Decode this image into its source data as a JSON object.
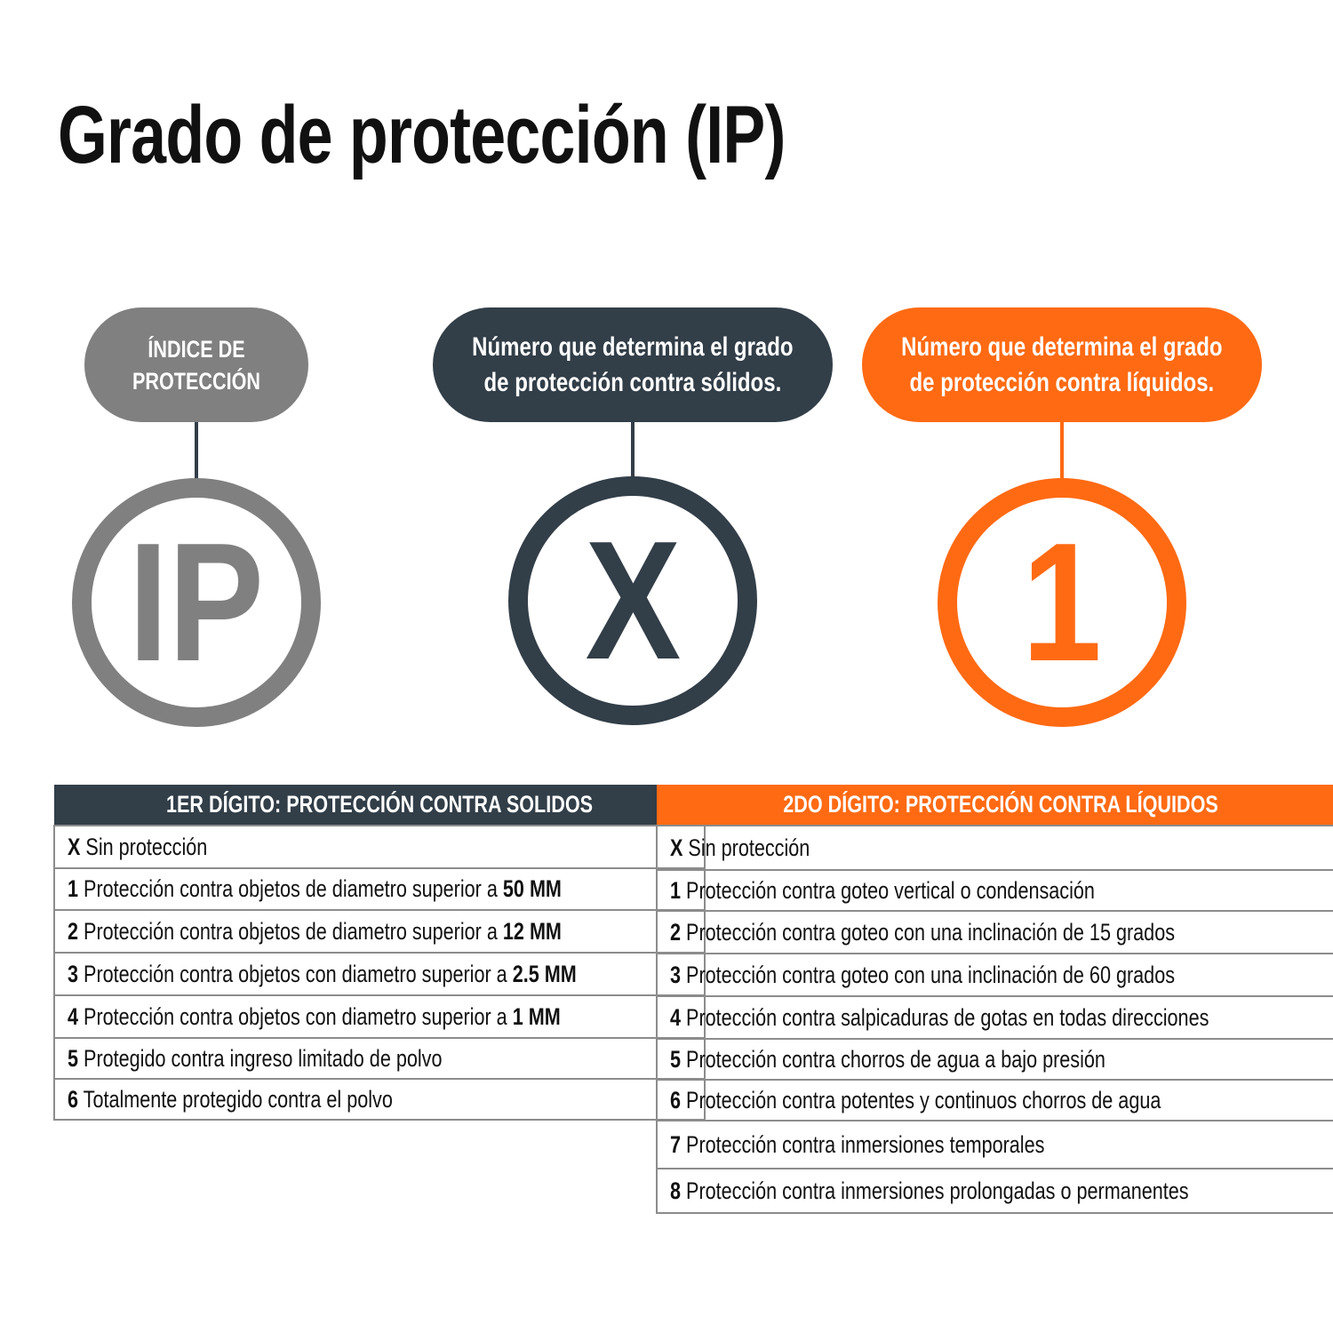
{
  "title": "Grado de protección (IP)",
  "colors": {
    "gray": "#808080",
    "dark": "#323e48",
    "orange": "#ff6a13"
  },
  "pills": {
    "index": {
      "line1": "ÍNDICE DE",
      "line2": "PROTECCIÓN"
    },
    "solids": {
      "line1": "Número que determina el grado",
      "line2": "de protección contra sólidos."
    },
    "liquids": {
      "line1": "Número que determina el grado",
      "line2": "de protección contra líquidos."
    }
  },
  "circles": {
    "index": "IP",
    "solids": "X",
    "liquids": "1"
  },
  "solids_table": {
    "header": "1ER DÍGITO: PROTECCIÓN CONTRA SOLIDOS",
    "rows": [
      {
        "num": "X",
        "text": "Sin protección",
        "bold": ""
      },
      {
        "num": "1",
        "text": "Protección contra objetos de diametro superior a",
        "bold": "50 MM"
      },
      {
        "num": "2",
        "text": "Protección contra objetos de diametro superior a",
        "bold": "12 MM"
      },
      {
        "num": "3",
        "text": "Protección contra objetos con diametro superior a",
        "bold": "2.5 MM"
      },
      {
        "num": "4",
        "text": "Protección contra objetos con diametro superior a",
        "bold": "1 MM"
      },
      {
        "num": "5",
        "text": "Protegido contra ingreso limitado de polvo",
        "bold": ""
      },
      {
        "num": "6",
        "text": "Totalmente protegido contra el polvo",
        "bold": ""
      }
    ]
  },
  "liquids_table": {
    "header": "2DO DÍGITO: PROTECCIÓN CONTRA LÍQUIDOS",
    "rows": [
      {
        "num": "X",
        "text": "Sin protección"
      },
      {
        "num": "1",
        "text": "Protección contra goteo vertical o condensación"
      },
      {
        "num": "2",
        "text": "Protección contra goteo con una inclinación de 15 grados"
      },
      {
        "num": "3",
        "text": "Protección contra goteo con una inclinación de 60 grados"
      },
      {
        "num": "4",
        "text": "Protección contra salpicaduras de gotas en todas direcciones"
      },
      {
        "num": "5",
        "text": "Protección contra chorros de agua a bajo presión"
      },
      {
        "num": "6",
        "text": "Protección contra potentes y continuos chorros de agua"
      },
      {
        "num": "7",
        "text": "Protección contra inmersiones temporales"
      },
      {
        "num": "8",
        "text": "Protección contra inmersiones prolongadas o permanentes"
      }
    ]
  }
}
